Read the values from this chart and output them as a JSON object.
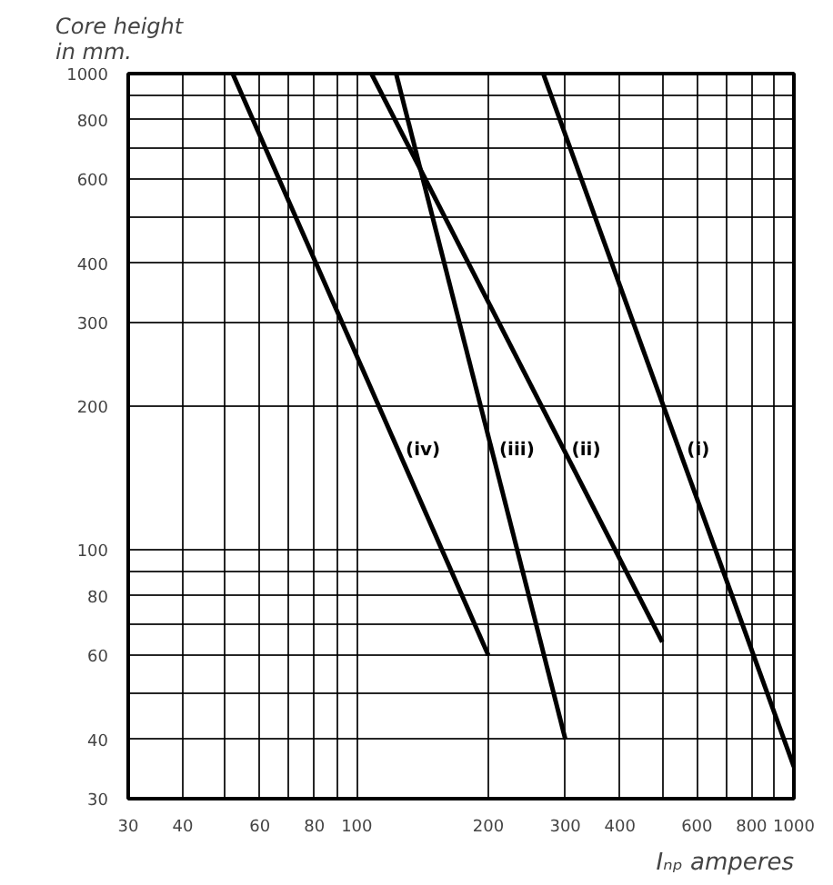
{
  "chart_data": {
    "type": "line",
    "ylabel": "Core height\nin mm.",
    "xlabel": "Iₙₚ amperes",
    "log": "xy",
    "grid": true,
    "marker": "none",
    "line_style": "solid",
    "xlim": [
      30,
      1000
    ],
    "ylim": [
      30,
      1000
    ],
    "xticks": [
      30,
      40,
      {
        "value": 50,
        "label": null
      },
      60,
      {
        "value": 70,
        "label": null
      },
      80,
      {
        "value": 90,
        "label": null
      },
      100,
      200,
      300,
      400,
      {
        "value": 500,
        "label": null
      },
      600,
      {
        "value": 700,
        "label": null
      },
      800,
      {
        "value": 900,
        "label": null
      },
      1000
    ],
    "yticks": [
      30,
      40,
      {
        "value": 50,
        "label": null
      },
      60,
      {
        "value": 70,
        "label": null
      },
      80,
      {
        "value": 90,
        "label": null
      },
      100,
      200,
      300,
      400,
      {
        "value": 500,
        "label": null
      },
      600,
      {
        "value": 700,
        "label": null
      },
      800,
      {
        "value": 900,
        "label": null
      },
      1000
    ],
    "series": [
      {
        "name": "(i)",
        "color": "#000000",
        "x": [
          267,
          1000
        ],
        "values": [
          1000,
          35
        ]
      },
      {
        "name": "(ii)",
        "color": "#000000",
        "x": [
          108,
          500
        ],
        "values": [
          1000,
          64
        ]
      },
      {
        "name": "(iii)",
        "color": "#000000",
        "x": [
          123,
          300
        ],
        "values": [
          1000,
          40
        ]
      },
      {
        "name": "(iv)",
        "color": "#000000",
        "x": [
          52,
          200
        ],
        "values": [
          1000,
          60
        ]
      }
    ]
  }
}
